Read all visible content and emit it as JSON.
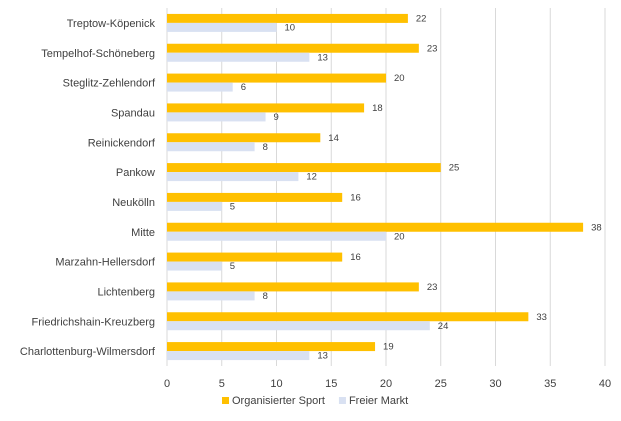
{
  "chart_data": {
    "type": "bar",
    "orientation": "horizontal",
    "categories": [
      "Treptow-Köpenick",
      "Tempelhof-Schöneberg",
      "Steglitz-Zehlendorf",
      "Spandau",
      "Reinickendorf",
      "Pankow",
      "Neukölln",
      "Mitte",
      "Marzahn-Hellersdorf",
      "Lichtenberg",
      "Friedrichshain-Kreuzberg",
      "Charlottenburg-Wilmersdorf"
    ],
    "series": [
      {
        "name": "Organisierter Sport",
        "color": "#FFC000",
        "values": [
          22,
          23,
          20,
          18,
          14,
          25,
          16,
          38,
          16,
          23,
          33,
          19
        ]
      },
      {
        "name": "Freier Markt",
        "color": "#D9E1F2",
        "values": [
          10,
          13,
          6,
          9,
          8,
          12,
          5,
          20,
          5,
          8,
          24,
          13
        ]
      }
    ],
    "xlim": [
      0,
      40
    ],
    "xticks": [
      "0",
      "5",
      "10",
      "15",
      "20",
      "25",
      "30",
      "35",
      "40"
    ],
    "grid": true,
    "legend_position": "bottom",
    "title": "",
    "xlabel": "",
    "ylabel": ""
  }
}
